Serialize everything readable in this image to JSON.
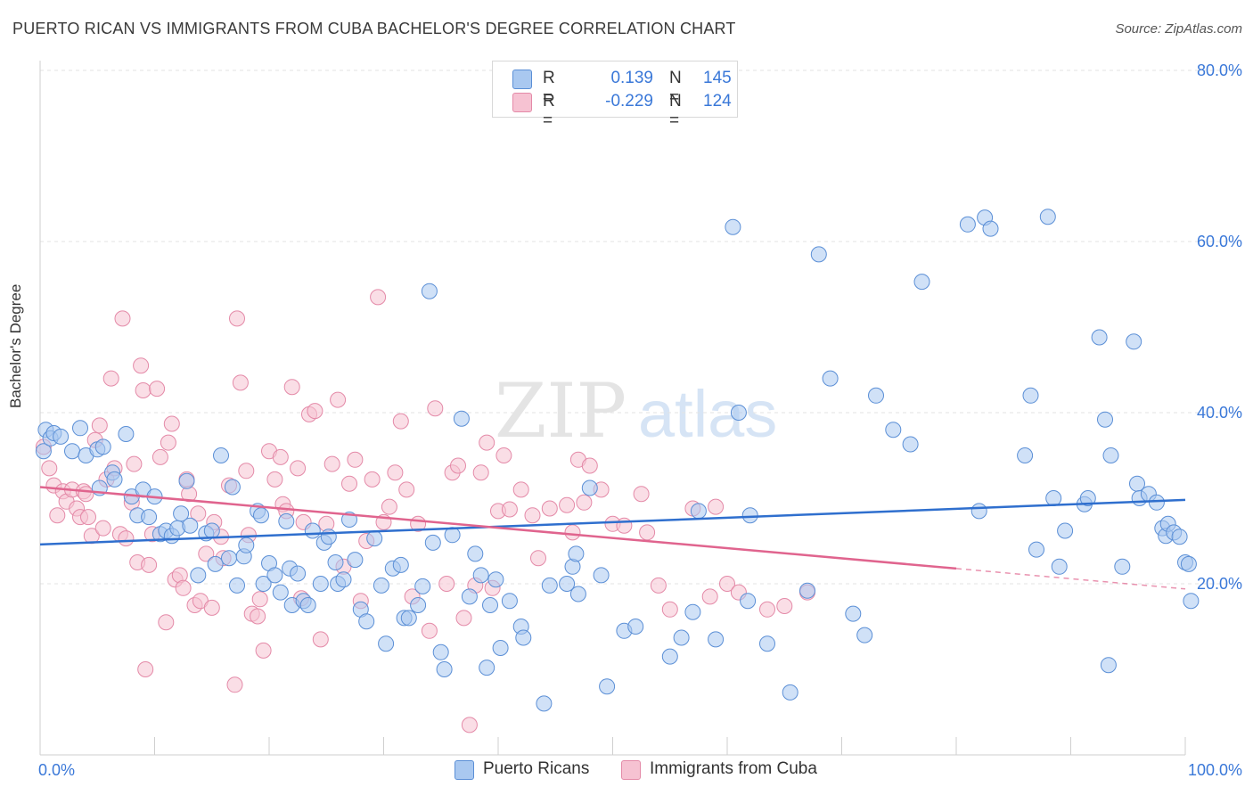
{
  "header": {
    "title": "PUERTO RICAN VS IMMIGRANTS FROM CUBA BACHELOR'S DEGREE CORRELATION CHART",
    "source": "Source: ZipAtlas.com"
  },
  "legend": {
    "rows": [
      {
        "r_label": "R =",
        "r_value": "0.139",
        "n_label": "N =",
        "n_value": "145"
      },
      {
        "r_label": "R =",
        "r_value": "-0.229",
        "n_label": "N =",
        "n_value": "124"
      }
    ]
  },
  "bottom_legend": {
    "items": [
      {
        "label": "Puerto Ricans"
      },
      {
        "label": "Immigrants from Cuba"
      }
    ]
  },
  "colors": {
    "blue_fill": "#a9c8f0",
    "blue_stroke": "#5b8fd6",
    "blue_line": "#2f6fce",
    "pink_fill": "#f6c2d2",
    "pink_stroke": "#e48aa8",
    "pink_line": "#e0648e",
    "axis_text": "#3a78d8",
    "grid": "#e3e3e3"
  },
  "chart_data": {
    "type": "scatter",
    "title": "PUERTO RICAN VS IMMIGRANTS FROM CUBA BACHELOR'S DEGREE CORRELATION CHART",
    "xlabel": "",
    "ylabel": "Bachelor's Degree",
    "xlim": [
      0,
      100
    ],
    "ylim": [
      0,
      80
    ],
    "x_ticks": [
      "0.0%",
      "100.0%"
    ],
    "y_ticks": [
      {
        "value": 20,
        "label": "20.0%"
      },
      {
        "value": 40,
        "label": "40.0%"
      },
      {
        "value": 60,
        "label": "60.0%"
      },
      {
        "value": 80,
        "label": "80.0%"
      }
    ],
    "grid": true,
    "legend_position": "top-center",
    "watermark": "ZIPatlas",
    "series": [
      {
        "name": "Puerto Ricans",
        "trend": {
          "x": [
            0,
            100
          ],
          "y": [
            24.6,
            29.8
          ],
          "solid_until": 100
        },
        "points": [
          [
            0.3,
            35.5
          ],
          [
            0.5,
            38
          ],
          [
            0.9,
            37
          ],
          [
            1.2,
            37.6
          ],
          [
            1.8,
            37.2
          ],
          [
            2.8,
            35.5
          ],
          [
            3.5,
            38.2
          ],
          [
            4,
            35
          ],
          [
            5,
            35.7
          ],
          [
            5.5,
            36
          ],
          [
            5.2,
            31.2
          ],
          [
            6.3,
            33
          ],
          [
            6.5,
            32.2
          ],
          [
            7.5,
            37.5
          ],
          [
            8,
            30.2
          ],
          [
            8.5,
            28
          ],
          [
            9,
            31
          ],
          [
            9.5,
            27.8
          ],
          [
            10,
            30.2
          ],
          [
            10.5,
            25.8
          ],
          [
            11,
            26.2
          ],
          [
            11.5,
            25.6
          ],
          [
            12,
            26.5
          ],
          [
            12.3,
            28.2
          ],
          [
            12.8,
            32
          ],
          [
            13.1,
            26.8
          ],
          [
            13.8,
            21
          ],
          [
            14.5,
            25.9
          ],
          [
            15,
            26.2
          ],
          [
            15.3,
            22.3
          ],
          [
            15.8,
            35
          ],
          [
            16.5,
            23
          ],
          [
            16.8,
            31.3
          ],
          [
            17.2,
            19.8
          ],
          [
            17.8,
            23.2
          ],
          [
            18,
            24.5
          ],
          [
            19,
            28.5
          ],
          [
            19.3,
            28
          ],
          [
            19.5,
            20
          ],
          [
            20,
            22.4
          ],
          [
            20.5,
            21
          ],
          [
            21,
            19
          ],
          [
            21.5,
            27.3
          ],
          [
            21.8,
            21.8
          ],
          [
            22,
            17.5
          ],
          [
            22.5,
            21.2
          ],
          [
            23,
            18
          ],
          [
            23.4,
            17.5
          ],
          [
            23.8,
            26.2
          ],
          [
            24.5,
            20
          ],
          [
            24.8,
            24.8
          ],
          [
            25.2,
            25.5
          ],
          [
            25.8,
            22.5
          ],
          [
            26,
            20
          ],
          [
            26.5,
            20.5
          ],
          [
            27,
            27.5
          ],
          [
            27.5,
            22.8
          ],
          [
            28,
            17
          ],
          [
            28.5,
            15.6
          ],
          [
            29.2,
            25.3
          ],
          [
            29.8,
            19.8
          ],
          [
            30.2,
            13
          ],
          [
            30.8,
            21.8
          ],
          [
            31.5,
            22.2
          ],
          [
            31.8,
            16
          ],
          [
            32.2,
            16
          ],
          [
            33,
            17.5
          ],
          [
            33.4,
            19.7
          ],
          [
            34,
            54.2
          ],
          [
            34.3,
            24.8
          ],
          [
            35,
            12
          ],
          [
            35.3,
            10
          ],
          [
            36,
            25.7
          ],
          [
            36.8,
            39.3
          ],
          [
            37.5,
            18.5
          ],
          [
            38,
            23.5
          ],
          [
            38.5,
            21
          ],
          [
            39,
            10.2
          ],
          [
            39.3,
            17.5
          ],
          [
            39.8,
            20.5
          ],
          [
            40.2,
            12.5
          ],
          [
            41,
            18
          ],
          [
            42,
            15
          ],
          [
            42.2,
            13.7
          ],
          [
            44,
            6
          ],
          [
            44.5,
            19.8
          ],
          [
            46,
            20
          ],
          [
            46.5,
            22
          ],
          [
            46.8,
            23.5
          ],
          [
            47,
            18.8
          ],
          [
            48,
            31.2
          ],
          [
            49,
            21
          ],
          [
            49.5,
            8
          ],
          [
            51,
            14.5
          ],
          [
            52,
            15
          ],
          [
            55,
            11.5
          ],
          [
            56,
            13.7
          ],
          [
            57,
            16.7
          ],
          [
            57.5,
            28.5
          ],
          [
            59,
            13.5
          ],
          [
            60.5,
            61.7
          ],
          [
            61,
            40
          ],
          [
            61.8,
            18
          ],
          [
            62,
            28
          ],
          [
            63.5,
            13
          ],
          [
            65.5,
            7.3
          ],
          [
            67,
            19.2
          ],
          [
            68,
            58.5
          ],
          [
            69,
            44
          ],
          [
            71,
            16.5
          ],
          [
            72,
            14
          ],
          [
            73,
            42
          ],
          [
            74.5,
            38
          ],
          [
            76,
            36.3
          ],
          [
            77,
            55.3
          ],
          [
            81,
            62
          ],
          [
            82.5,
            62.8
          ],
          [
            82,
            28.5
          ],
          [
            83,
            61.5
          ],
          [
            86,
            35
          ],
          [
            86.5,
            42
          ],
          [
            87,
            24
          ],
          [
            88,
            62.9
          ],
          [
            88.5,
            30
          ],
          [
            89,
            22
          ],
          [
            89.5,
            26.2
          ],
          [
            91.2,
            29.3
          ],
          [
            91.5,
            30
          ],
          [
            92.5,
            48.8
          ],
          [
            93,
            39.2
          ],
          [
            93.3,
            10.5
          ],
          [
            93.5,
            35
          ],
          [
            94.5,
            22
          ],
          [
            95.5,
            48.3
          ],
          [
            95.8,
            31.7
          ],
          [
            96,
            30
          ],
          [
            96.8,
            30.5
          ],
          [
            97.5,
            29.5
          ],
          [
            98,
            26.5
          ],
          [
            98.3,
            25.6
          ],
          [
            98.5,
            27
          ],
          [
            99,
            26
          ],
          [
            99.5,
            25.5
          ],
          [
            100,
            22.5
          ],
          [
            100.3,
            22.3
          ],
          [
            100.5,
            18
          ]
        ]
      },
      {
        "name": "Immigrants from Cuba",
        "trend": {
          "x": [
            0,
            100
          ],
          "y": [
            31.3,
            19.4
          ],
          "solid_until": 80
        },
        "points": [
          [
            0.3,
            36
          ],
          [
            0.8,
            33.5
          ],
          [
            1.2,
            31.5
          ],
          [
            1.5,
            28
          ],
          [
            2,
            30.8
          ],
          [
            2.3,
            29.6
          ],
          [
            2.8,
            31
          ],
          [
            3.2,
            28.8
          ],
          [
            3.5,
            27.8
          ],
          [
            3.8,
            30.8
          ],
          [
            4,
            30.5
          ],
          [
            4.2,
            27.8
          ],
          [
            4.5,
            25.6
          ],
          [
            4.8,
            36.8
          ],
          [
            5.2,
            38.5
          ],
          [
            5.5,
            26.5
          ],
          [
            5.8,
            32.2
          ],
          [
            6.2,
            44
          ],
          [
            6.5,
            33.5
          ],
          [
            7,
            25.8
          ],
          [
            7.5,
            25.3
          ],
          [
            7.2,
            51
          ],
          [
            8,
            29.5
          ],
          [
            8.2,
            34
          ],
          [
            8.5,
            22.5
          ],
          [
            8.8,
            45.5
          ],
          [
            9,
            42.6
          ],
          [
            9.2,
            10
          ],
          [
            9.5,
            22.2
          ],
          [
            9.8,
            25.8
          ],
          [
            10.2,
            42.8
          ],
          [
            10.5,
            34.8
          ],
          [
            11,
            15.5
          ],
          [
            11.2,
            36.5
          ],
          [
            11.5,
            38.7
          ],
          [
            11.8,
            20.5
          ],
          [
            12.2,
            21
          ],
          [
            12.5,
            19.5
          ],
          [
            12.8,
            32.2
          ],
          [
            13,
            30.5
          ],
          [
            13.5,
            17.5
          ],
          [
            13.8,
            28.2
          ],
          [
            14,
            18
          ],
          [
            14.5,
            23.5
          ],
          [
            15,
            17.2
          ],
          [
            15.2,
            27.2
          ],
          [
            15.8,
            25.5
          ],
          [
            16,
            23
          ],
          [
            16.5,
            31.5
          ],
          [
            17,
            8.2
          ],
          [
            17.2,
            51
          ],
          [
            17.5,
            43.5
          ],
          [
            18,
            33.2
          ],
          [
            18.2,
            25.7
          ],
          [
            18.5,
            16.5
          ],
          [
            19,
            16.2
          ],
          [
            19.2,
            18.2
          ],
          [
            19.5,
            12.2
          ],
          [
            20,
            35.5
          ],
          [
            20.5,
            32.2
          ],
          [
            21,
            34.8
          ],
          [
            21.2,
            29.3
          ],
          [
            21.5,
            28.5
          ],
          [
            22,
            43
          ],
          [
            22.5,
            33.5
          ],
          [
            22.8,
            18.3
          ],
          [
            23,
            27.2
          ],
          [
            23.5,
            39.8
          ],
          [
            24,
            40.2
          ],
          [
            24.5,
            13.5
          ],
          [
            25,
            27
          ],
          [
            25.5,
            34
          ],
          [
            26,
            41.5
          ],
          [
            26.5,
            22
          ],
          [
            27,
            31.7
          ],
          [
            27.5,
            34.5
          ],
          [
            28,
            18
          ],
          [
            28.5,
            25
          ],
          [
            29,
            32.2
          ],
          [
            29.5,
            53.5
          ],
          [
            30,
            27.2
          ],
          [
            30.5,
            29
          ],
          [
            31,
            33
          ],
          [
            31.5,
            39
          ],
          [
            32,
            31
          ],
          [
            32.5,
            18.5
          ],
          [
            33,
            27
          ],
          [
            34,
            14.5
          ],
          [
            34.5,
            40.5
          ],
          [
            35.5,
            20
          ],
          [
            36,
            33
          ],
          [
            36.5,
            33.8
          ],
          [
            37,
            16
          ],
          [
            37.5,
            3.5
          ],
          [
            38,
            19.8
          ],
          [
            38.5,
            33
          ],
          [
            39,
            36.5
          ],
          [
            39.5,
            19.5
          ],
          [
            40,
            28.5
          ],
          [
            40.5,
            35
          ],
          [
            41,
            28.7
          ],
          [
            42,
            31
          ],
          [
            43,
            28
          ],
          [
            43.5,
            23
          ],
          [
            44.5,
            28.8
          ],
          [
            46,
            29.2
          ],
          [
            46.5,
            26
          ],
          [
            47,
            34.5
          ],
          [
            47.5,
            29.5
          ],
          [
            48,
            33.8
          ],
          [
            49,
            31
          ],
          [
            50,
            27
          ],
          [
            51,
            26.8
          ],
          [
            52.5,
            30.5
          ],
          [
            53,
            26
          ],
          [
            54,
            19.8
          ],
          [
            55,
            17
          ],
          [
            57,
            28.8
          ],
          [
            58.5,
            18.5
          ],
          [
            59,
            29
          ],
          [
            60,
            20
          ],
          [
            61,
            19
          ],
          [
            63.5,
            17
          ],
          [
            65,
            17.4
          ],
          [
            67,
            19
          ]
        ]
      }
    ]
  }
}
